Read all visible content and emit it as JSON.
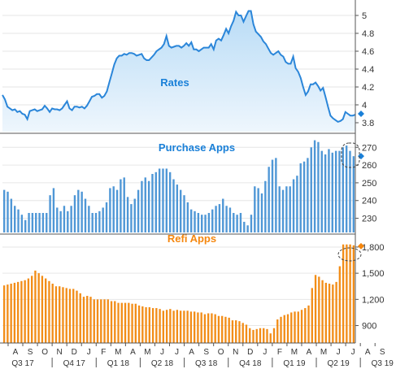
{
  "chart_data": [
    {
      "type": "area",
      "title": "Rates",
      "title_color": "#1a80d8",
      "line_color": "#2b86d9",
      "fill_top": "#b9dcf6",
      "fill_bottom": "#eef6fd",
      "ylim": [
        3.7,
        5.1
      ],
      "yticks": [
        3.8,
        4,
        4.2,
        4.4,
        4.6,
        4.8,
        5
      ],
      "ytick_labels": [
        "3.8",
        "4",
        "4.2",
        "4.4",
        "4.6",
        "4.8",
        "5"
      ],
      "current_marker": 3.9,
      "marker_color": "#1a80d8",
      "values": [
        4.11,
        4.06,
        3.98,
        3.96,
        3.94,
        3.95,
        3.92,
        3.93,
        3.9,
        3.89,
        3.84,
        3.93,
        3.94,
        3.95,
        3.93,
        3.94,
        3.95,
        3.99,
        3.96,
        3.92,
        3.96,
        3.95,
        3.95,
        3.94,
        3.96,
        4.0,
        4.04,
        3.96,
        3.94,
        3.98,
        3.98,
        3.97,
        3.98,
        3.96,
        3.99,
        4.04,
        4.09,
        4.1,
        4.12,
        4.12,
        4.08,
        4.1,
        4.15,
        4.25,
        4.35,
        4.45,
        4.52,
        4.55,
        4.55,
        4.57,
        4.56,
        4.58,
        4.58,
        4.57,
        4.55,
        4.56,
        4.57,
        4.52,
        4.5,
        4.5,
        4.53,
        4.56,
        4.6,
        4.62,
        4.64,
        4.68,
        4.77,
        4.66,
        4.64,
        4.65,
        4.66,
        4.66,
        4.64,
        4.66,
        4.69,
        4.66,
        4.7,
        4.62,
        4.62,
        4.6,
        4.62,
        4.64,
        4.64,
        4.64,
        4.68,
        4.62,
        4.72,
        4.74,
        4.72,
        4.78,
        4.85,
        4.8,
        4.88,
        4.94,
        5.04,
        5.0,
        5.0,
        4.93,
        4.99,
        5.05,
        5.05,
        4.9,
        4.82,
        4.79,
        4.76,
        4.71,
        4.68,
        4.63,
        4.58,
        4.56,
        4.58,
        4.6,
        4.56,
        4.54,
        4.48,
        4.46,
        4.46,
        4.54,
        4.41,
        4.37,
        4.3,
        4.2,
        4.11,
        4.15,
        4.23,
        4.23,
        4.25,
        4.21,
        4.16,
        4.19,
        4.09,
        3.98,
        3.88,
        3.85,
        3.83,
        3.81,
        3.82,
        3.84,
        3.92,
        3.9,
        3.88,
        3.88,
        3.89
      ]
    },
    {
      "type": "bar",
      "title": "Purchase Apps",
      "title_color": "#1a80d8",
      "bar_color": "#4f97d6",
      "ylim": [
        222,
        277
      ],
      "yticks": [
        230,
        240,
        250,
        260,
        270
      ],
      "ytick_labels": [
        "230",
        "240",
        "250",
        "260",
        "270"
      ],
      "current_marker": 265,
      "marker_color": "#1a80d8",
      "values": [
        246,
        245,
        241,
        237,
        235,
        232,
        229,
        233,
        233,
        233,
        233,
        233,
        233,
        243,
        247,
        236,
        234,
        237,
        234,
        237,
        243,
        246,
        245,
        241,
        237,
        233,
        233,
        234,
        236,
        239,
        247,
        248,
        246,
        252,
        253,
        242,
        238,
        241,
        246,
        251,
        253,
        251,
        255,
        256,
        258,
        258,
        258,
        256,
        252,
        249,
        246,
        243,
        239,
        235,
        234,
        233,
        232,
        232,
        233,
        235,
        237,
        238,
        241,
        237,
        236,
        233,
        232,
        233,
        228,
        226,
        232,
        248,
        247,
        244,
        251,
        259,
        263,
        264,
        248,
        246,
        248,
        248,
        252,
        254,
        261,
        262,
        264,
        270,
        274,
        273,
        268,
        266,
        269,
        267,
        268,
        268,
        270,
        271,
        268,
        265
      ]
    },
    {
      "type": "bar",
      "title": "Refi Apps",
      "title_color": "#f5870e",
      "bar_color": "#f28d18",
      "ylim": [
        700,
        1930
      ],
      "yticks": [
        900,
        1200,
        1500,
        1800
      ],
      "ytick_labels": [
        "900",
        "1,200",
        "1,500",
        "1,800"
      ],
      "current_marker": 1810,
      "marker_color": "#f5870e",
      "values": [
        1360,
        1370,
        1380,
        1390,
        1400,
        1410,
        1420,
        1440,
        1470,
        1530,
        1500,
        1470,
        1440,
        1410,
        1380,
        1350,
        1350,
        1340,
        1330,
        1320,
        1320,
        1300,
        1270,
        1230,
        1240,
        1230,
        1200,
        1200,
        1200,
        1200,
        1200,
        1180,
        1180,
        1160,
        1160,
        1160,
        1160,
        1150,
        1150,
        1130,
        1120,
        1110,
        1110,
        1100,
        1100,
        1090,
        1070,
        1080,
        1090,
        1070,
        1080,
        1070,
        1070,
        1070,
        1060,
        1060,
        1050,
        1050,
        1030,
        1040,
        1040,
        1030,
        1010,
        1010,
        1000,
        990,
        960,
        960,
        950,
        930,
        910,
        870,
        850,
        860,
        870,
        870,
        860,
        810,
        870,
        970,
        1000,
        1020,
        1030,
        1050,
        1060,
        1060,
        1080,
        1100,
        1130,
        1330,
        1480,
        1460,
        1420,
        1390,
        1380,
        1370,
        1400,
        1580,
        1830,
        1830,
        1830,
        1820
      ]
    }
  ],
  "x_axis": {
    "months": [
      "A",
      "S",
      "O",
      "N",
      "D",
      "J",
      "F",
      "M",
      "A",
      "M",
      "J",
      "J",
      "A",
      "S",
      "O",
      "N",
      "D",
      "J",
      "F",
      "M",
      "A",
      "M",
      "J",
      "J",
      "A",
      "S"
    ],
    "quarters": [
      "Q3 17",
      "Q4 17",
      "Q1 18",
      "Q2 18",
      "Q3 18",
      "Q4 18",
      "Q1 19",
      "Q2 19",
      "Q3 19"
    ]
  },
  "styles": {
    "axis_color": "#555555",
    "text_color": "#333333",
    "grid_color": "#e6e6e6",
    "highlight_color": "#444444"
  }
}
